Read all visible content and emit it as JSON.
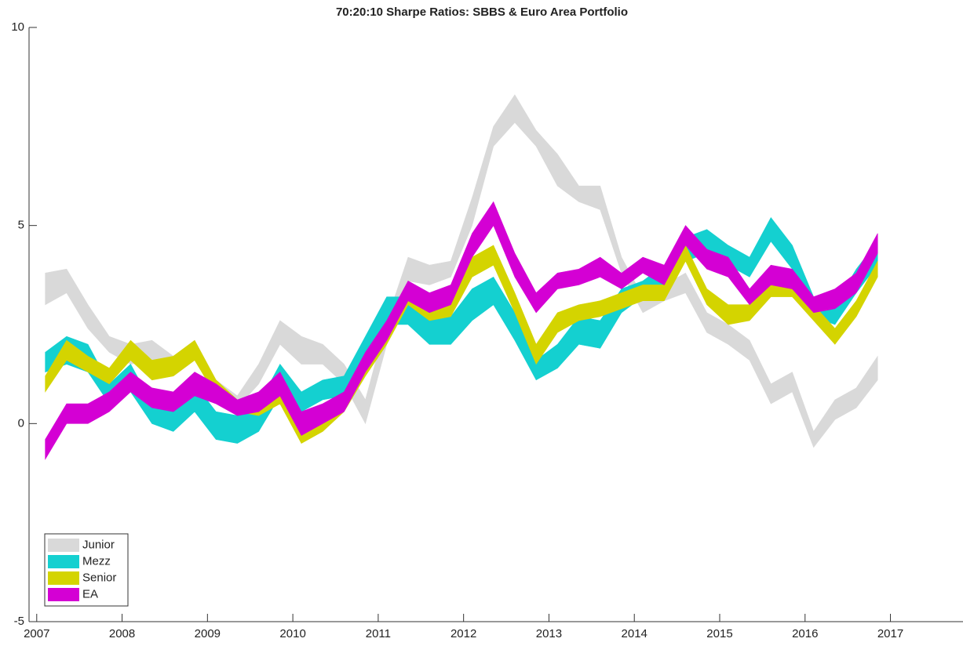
{
  "chart_data": {
    "type": "band",
    "title": "70:20:10 Sharpe Ratios: SBBS & Euro Area Portfolio",
    "x": [
      2007.1,
      2007.35,
      2007.6,
      2007.85,
      2008.1,
      2008.35,
      2008.6,
      2008.85,
      2009.1,
      2009.35,
      2009.6,
      2009.85,
      2010.1,
      2010.35,
      2010.6,
      2010.85,
      2011.1,
      2011.35,
      2011.6,
      2011.85,
      2012.1,
      2012.35,
      2012.6,
      2012.85,
      2013.1,
      2013.35,
      2013.6,
      2013.85,
      2014.1,
      2014.35,
      2014.6,
      2014.85,
      2015.1,
      2015.35,
      2015.6,
      2015.85,
      2016.1,
      2016.35,
      2016.6,
      2016.85
    ],
    "xlim": [
      2006.91,
      2017.85
    ],
    "xticks": [
      2007,
      2008,
      2009,
      2010,
      2011,
      2012,
      2013,
      2014,
      2015,
      2016,
      2017
    ],
    "ylim": [
      -5,
      10
    ],
    "yticks": [
      -5,
      0,
      5,
      10
    ],
    "legend": "lower left",
    "series": [
      {
        "name": "Junior",
        "color": "#d9d9d9",
        "lower": [
          3.0,
          3.3,
          2.4,
          1.8,
          1.5,
          1.6,
          1.2,
          1.6,
          0.7,
          0.4,
          1.0,
          2.0,
          1.5,
          1.5,
          1.0,
          0.0,
          2.0,
          3.6,
          3.5,
          3.7,
          5.0,
          7.0,
          7.6,
          7.0,
          6.0,
          5.6,
          5.4,
          3.8,
          2.8,
          3.1,
          3.3,
          2.3,
          2.0,
          1.6,
          0.5,
          0.8,
          -0.6,
          0.1,
          0.4,
          1.1
        ],
        "upper": [
          3.8,
          3.9,
          3.0,
          2.2,
          2.0,
          2.1,
          1.7,
          2.1,
          1.1,
          0.7,
          1.5,
          2.6,
          2.2,
          2.0,
          1.5,
          0.6,
          2.6,
          4.2,
          4.0,
          4.1,
          5.7,
          7.5,
          8.3,
          7.4,
          6.8,
          6.0,
          6.0,
          4.2,
          3.2,
          3.5,
          3.8,
          2.8,
          2.5,
          2.1,
          1.0,
          1.3,
          -0.2,
          0.6,
          0.9,
          1.7
        ]
      },
      {
        "name": "Mezz",
        "color": "#14d0d0",
        "lower": [
          1.3,
          1.5,
          1.3,
          0.5,
          0.8,
          0.0,
          -0.2,
          0.3,
          -0.4,
          -0.5,
          -0.2,
          0.7,
          0.3,
          0.6,
          0.7,
          1.5,
          2.5,
          2.5,
          2.0,
          2.0,
          2.6,
          3.0,
          2.1,
          1.1,
          1.4,
          2.0,
          1.9,
          2.8,
          3.2,
          3.5,
          4.1,
          4.3,
          4.0,
          3.7,
          4.6,
          3.9,
          2.7,
          2.5,
          3.3,
          4.0
        ],
        "upper": [
          1.8,
          2.2,
          2.0,
          1.0,
          1.5,
          0.5,
          0.4,
          1.0,
          0.3,
          0.2,
          0.5,
          1.5,
          0.8,
          1.1,
          1.2,
          2.2,
          3.2,
          3.2,
          2.6,
          2.7,
          3.4,
          3.7,
          2.8,
          1.6,
          2.0,
          2.7,
          2.6,
          3.4,
          3.6,
          4.0,
          4.7,
          4.9,
          4.5,
          4.2,
          5.2,
          4.5,
          3.2,
          3.0,
          3.9,
          4.6
        ]
      },
      {
        "name": "Senior",
        "color": "#d4d400",
        "lower": [
          0.8,
          1.6,
          1.3,
          1.0,
          1.6,
          1.1,
          1.2,
          1.6,
          0.7,
          0.3,
          0.2,
          0.5,
          -0.5,
          -0.2,
          0.3,
          1.2,
          2.0,
          3.0,
          2.6,
          2.7,
          3.7,
          4.0,
          2.8,
          1.5,
          2.3,
          2.6,
          2.7,
          2.9,
          3.1,
          3.1,
          4.1,
          3.0,
          2.5,
          2.6,
          3.2,
          3.2,
          2.6,
          2.0,
          2.7,
          3.7
        ],
        "upper": [
          1.2,
          2.1,
          1.7,
          1.4,
          2.1,
          1.6,
          1.7,
          2.1,
          1.1,
          0.6,
          0.6,
          0.9,
          0.0,
          0.2,
          0.7,
          1.6,
          2.3,
          3.4,
          3.0,
          3.1,
          4.2,
          4.5,
          3.3,
          2.0,
          2.8,
          3.0,
          3.1,
          3.3,
          3.5,
          3.5,
          4.5,
          3.4,
          3.0,
          3.0,
          3.6,
          3.6,
          3.0,
          2.4,
          3.1,
          4.1
        ]
      },
      {
        "name": "EA",
        "color": "#d400d4",
        "lower": [
          -0.9,
          0.0,
          0.0,
          0.3,
          0.8,
          0.4,
          0.3,
          0.7,
          0.5,
          0.2,
          0.3,
          0.7,
          -0.3,
          0.0,
          0.3,
          1.3,
          2.1,
          3.1,
          2.8,
          3.0,
          4.2,
          5.0,
          3.7,
          2.8,
          3.4,
          3.5,
          3.7,
          3.4,
          3.8,
          3.5,
          4.5,
          3.9,
          3.7,
          3.0,
          3.5,
          3.4,
          2.8,
          2.9,
          3.3,
          4.3
        ],
        "upper": [
          -0.4,
          0.5,
          0.5,
          0.8,
          1.3,
          0.9,
          0.8,
          1.3,
          1.0,
          0.6,
          0.8,
          1.3,
          0.3,
          0.5,
          0.8,
          1.8,
          2.6,
          3.6,
          3.3,
          3.5,
          4.8,
          5.6,
          4.3,
          3.3,
          3.8,
          3.9,
          4.2,
          3.8,
          4.2,
          4.0,
          5.0,
          4.4,
          4.2,
          3.4,
          4.0,
          3.9,
          3.2,
          3.4,
          3.8,
          4.8
        ]
      }
    ]
  }
}
